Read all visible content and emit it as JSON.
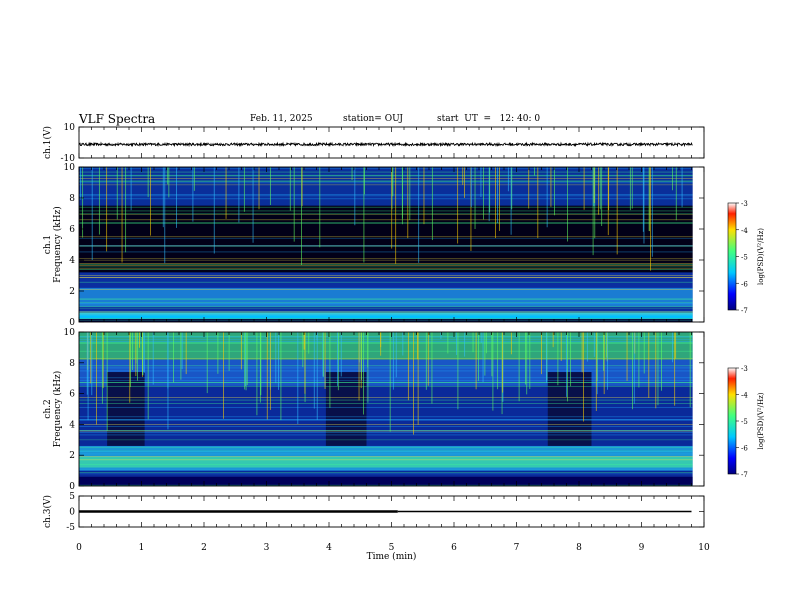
{
  "header": {
    "title": "VLF Spectra",
    "date": "Feb. 11, 2025",
    "station": "station= OUJ",
    "start": "start  UT  =   12: 40: 0"
  },
  "colors": {
    "background": "#ffffff",
    "spectrogram_dark": "#000033",
    "trace": "#000000"
  },
  "chart_data": [
    {
      "type": "line",
      "id": "ch1-waveform",
      "ylabel": "ch.1(V)",
      "ylim": [
        -10,
        10
      ],
      "yticks": [
        "10",
        "-10"
      ],
      "xlim": [
        0,
        10
      ],
      "series": [
        {
          "name": "ch.1 waveform",
          "description": "noise band around approx -1 V",
          "level": -1.2,
          "amplitude": 0.8
        }
      ]
    },
    {
      "type": "heatmap",
      "id": "ch1-spectrogram",
      "ylabel": "ch.1",
      "ylabel2": "Frequency  (kHz)",
      "ylim": [
        0,
        10
      ],
      "yticks": [
        "0",
        "2",
        "4",
        "6",
        "8",
        "10"
      ],
      "xlim": [
        0,
        10
      ],
      "colorbar": {
        "label": "log(PSD)(V²/Hz)",
        "range": [
          -7,
          -3
        ],
        "ticks": [
          "-3",
          "-4",
          "-5",
          "-6",
          "-7"
        ]
      }
    },
    {
      "type": "heatmap",
      "id": "ch2-spectrogram",
      "ylabel": "ch.2",
      "ylabel2": "Frequency  (kHz)",
      "ylim": [
        0,
        10
      ],
      "yticks": [
        "0",
        "2",
        "4",
        "6",
        "8",
        "10"
      ],
      "xlim": [
        0,
        10
      ],
      "colorbar": {
        "label": "log(PSD)(V²/Hz)",
        "range": [
          -7,
          -3
        ],
        "ticks": [
          "-3",
          "-4",
          "-5",
          "-6",
          "-7"
        ]
      }
    },
    {
      "type": "line",
      "id": "ch3-voltage",
      "ylabel": "ch.3(V)",
      "ylim": [
        -5,
        5
      ],
      "yticks": [
        "5",
        "0",
        "-5"
      ],
      "xlim": [
        0,
        10
      ],
      "series": [
        {
          "name": "ch.3",
          "x": [
            0,
            5.1,
            9.8
          ],
          "y": [
            0,
            0,
            0
          ]
        }
      ]
    }
  ],
  "xaxis": {
    "label": "Time  (min)",
    "ticks": [
      "0",
      "1",
      "2",
      "3",
      "4",
      "5",
      "6",
      "7",
      "8",
      "9",
      "10"
    ]
  }
}
